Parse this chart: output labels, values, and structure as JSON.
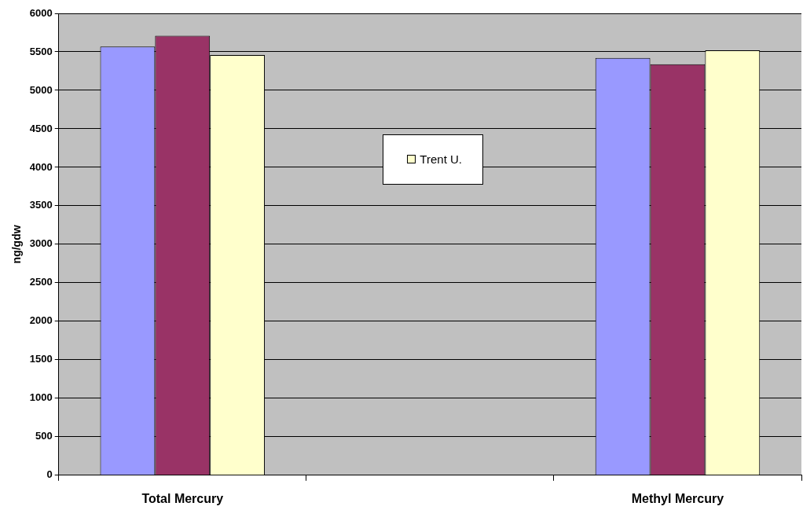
{
  "chart_data": {
    "type": "bar",
    "ylabel": "ng/gdw",
    "categories": [
      "Total Mercury",
      null,
      "Methyl Mercury"
    ],
    "series": [
      {
        "color": "#9999ff",
        "values": [
          5570,
          null,
          5420
        ]
      },
      {
        "color": "#993366",
        "values": [
          5710,
          null,
          5340
        ]
      },
      {
        "name": "Trent U.",
        "color": "#ffffcc",
        "values": [
          5460,
          null,
          5520
        ]
      }
    ],
    "ylim": [
      0,
      6000
    ],
    "yticks": [
      0,
      500,
      1000,
      1500,
      2000,
      2500,
      3000,
      3500,
      4000,
      4500,
      5000,
      5500,
      6000
    ],
    "grid": "y",
    "legend": "center"
  }
}
